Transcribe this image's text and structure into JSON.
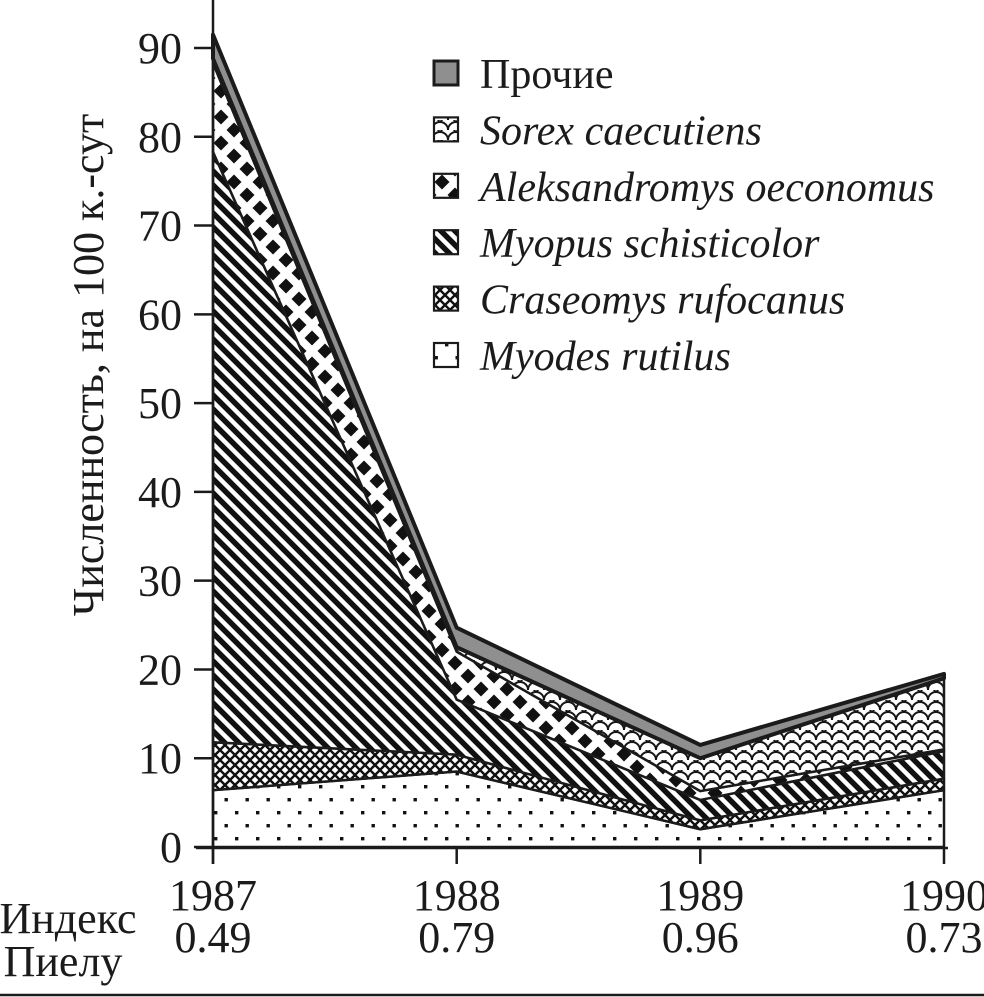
{
  "figure": {
    "row_label_line1": "Индекс",
    "row_label_line2": "Пиелу"
  },
  "chart_data": {
    "type": "area",
    "stacked": true,
    "title": "",
    "ylabel": "Численность, на 100 к.-сут",
    "ylim": [
      0,
      93
    ],
    "yticks": [
      0,
      10,
      20,
      30,
      40,
      50,
      60,
      70,
      80,
      90
    ],
    "categories": [
      "1987",
      "1988",
      "1989",
      "1990"
    ],
    "pielou_index": [
      "0.49",
      "0.79",
      "0.96",
      "0.73"
    ],
    "grid": false,
    "legend_position": "top-right-inside",
    "legend_top_to_bottom": [
      "Прочие",
      "Sorex caecutiens",
      "Aleksandromys oeconomus",
      "Myopus schisticolor",
      "Craseomys rufocanus",
      "Myodes rutilus"
    ],
    "series_bottom_to_top": [
      {
        "name": "Myodes rutilus",
        "italic": true,
        "pattern": "dots",
        "values": [
          6.4,
          8.5,
          2.0,
          6.4
        ]
      },
      {
        "name": "Craseomys rufocanus",
        "italic": true,
        "pattern": "crosshatch",
        "values": [
          5.4,
          1.9,
          1.0,
          1.3
        ]
      },
      {
        "name": "Myopus schisticolor",
        "italic": true,
        "pattern": "diagonal-stripes",
        "values": [
          66.5,
          6.2,
          2.3,
          3.1
        ]
      },
      {
        "name": "Aleksandromys oeconomus",
        "italic": true,
        "pattern": "diamonds",
        "values": [
          10.0,
          5.4,
          1.0,
          0.2
        ]
      },
      {
        "name": "Sorex caecutiens",
        "italic": true,
        "pattern": "fish-scales",
        "values": [
          0.5,
          0.5,
          3.7,
          8.0
        ]
      },
      {
        "name": "Прочие",
        "italic": false,
        "pattern": "solid-gray",
        "values": [
          2.7,
          2.2,
          1.5,
          0.5
        ]
      }
    ],
    "totals": [
      91.5,
      24.7,
      11.5,
      19.5
    ],
    "colors": {
      "others_fill": "#8f8f8f",
      "outline": "#1b1b1b",
      "background": "#ffffff"
    }
  }
}
